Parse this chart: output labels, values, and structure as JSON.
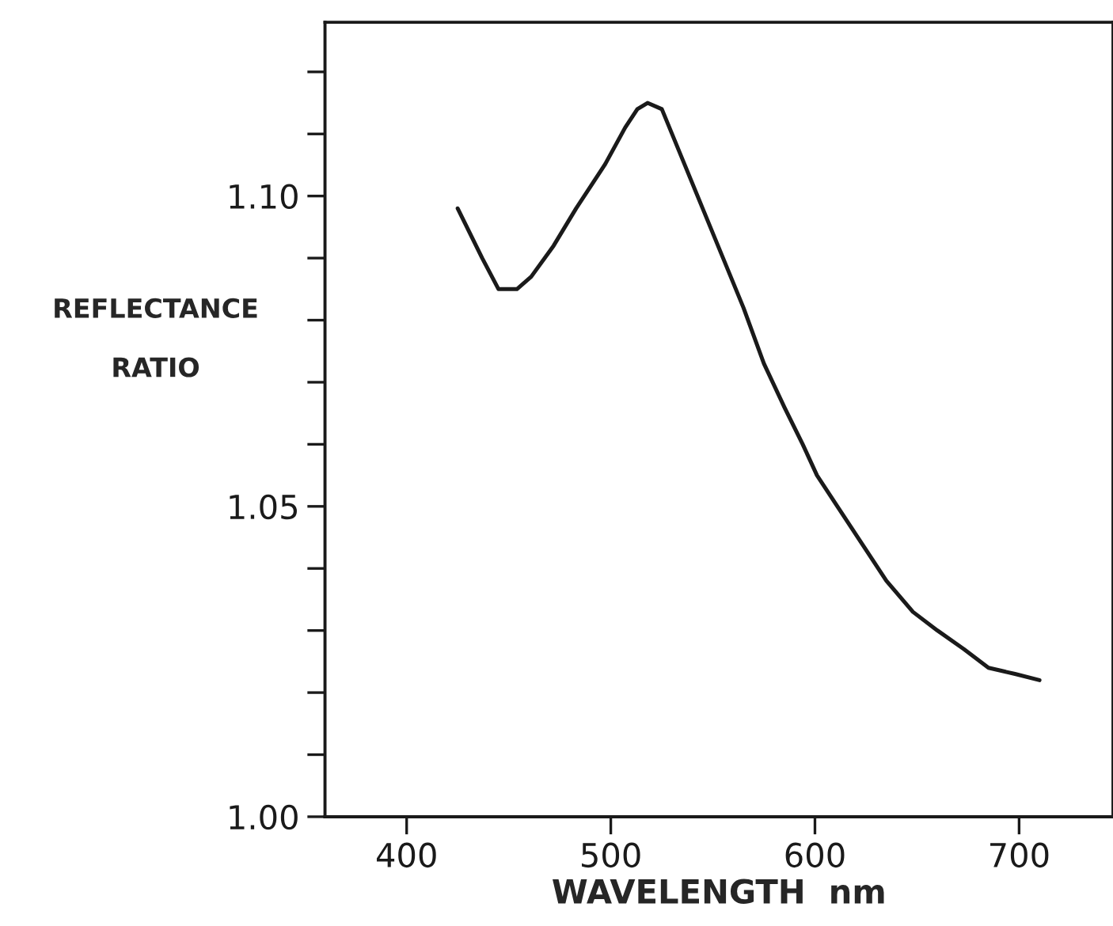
{
  "chart_data": {
    "type": "line",
    "xlabel": "WAVELENGTH  nm",
    "ylabel": "REFLECTANCE\n\nRATIO",
    "x": [
      425,
      437,
      445,
      454,
      461,
      472,
      483,
      497,
      507,
      513,
      518,
      525,
      535,
      545,
      555,
      565,
      575,
      585,
      594,
      601,
      611,
      623,
      635,
      648,
      660,
      673,
      685,
      698,
      710
    ],
    "series": [
      {
        "color": "#1a1a1a",
        "values": [
          1.098,
          1.09,
          1.085,
          1.085,
          1.087,
          1.092,
          1.098,
          1.105,
          1.111,
          1.114,
          1.115,
          1.114,
          1.106,
          1.098,
          1.09,
          1.082,
          1.073,
          1.066,
          1.06,
          1.055,
          1.05,
          1.044,
          1.038,
          1.033,
          1.03,
          1.027,
          1.024,
          1.023,
          1.022
        ]
      }
    ],
    "xlim": [
      360,
      746
    ],
    "xticks": [
      400,
      500,
      600,
      700
    ],
    "ylim": [
      1.0,
      1.128
    ],
    "yticks": [
      {
        "value": 1.0,
        "label": "1.00"
      },
      {
        "value": 1.01,
        "label": null
      },
      {
        "value": 1.02,
        "label": null
      },
      {
        "value": 1.03,
        "label": null
      },
      {
        "value": 1.04,
        "label": null
      },
      {
        "value": 1.05,
        "label": "1.05"
      },
      {
        "value": 1.06,
        "label": null
      },
      {
        "value": 1.07,
        "label": null
      },
      {
        "value": 1.08,
        "label": null
      },
      {
        "value": 1.09,
        "label": null
      },
      {
        "value": 1.1,
        "label": "1.10"
      },
      {
        "value": 1.11,
        "label": null
      },
      {
        "value": 1.12,
        "label": null
      }
    ],
    "grid": false
  }
}
